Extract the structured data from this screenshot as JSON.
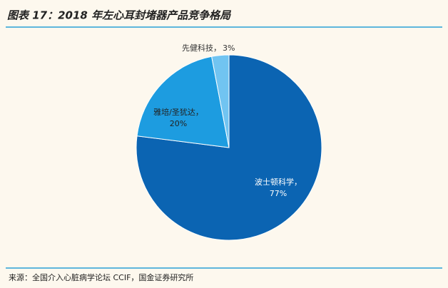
{
  "chart_data": {
    "type": "pie",
    "title": "图表 17：2018 年左心耳封堵器产品竞争格局",
    "categories": [
      "波士顿科学，",
      "雅培/圣犹达，",
      "先健科技，"
    ],
    "values": [
      77,
      20,
      3
    ],
    "value_labels": [
      "77%",
      "20%",
      "3%"
    ],
    "colors": [
      "#0b64b2",
      "#1d9ce0",
      "#71c4f1"
    ],
    "source": "来源：全国介入心脏病学论坛 CCIF，国金证券研究所"
  }
}
